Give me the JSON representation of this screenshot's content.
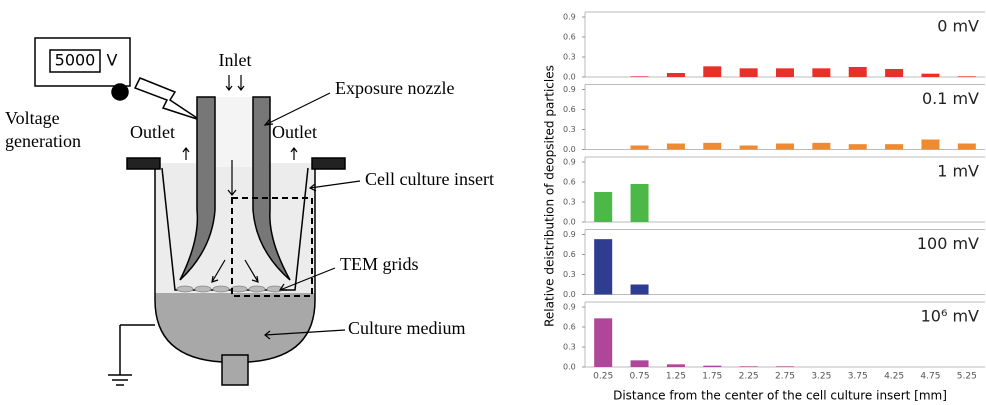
{
  "diagram": {
    "display_value": "5000",
    "display_unit": "V",
    "voltage_label": [
      "Voltage",
      "generation"
    ],
    "inlet": "Inlet",
    "exposure_nozzle": "Exposure nozzle",
    "outlet_left": "Outlet",
    "outlet_right": "Outlet",
    "cell_culture_insert": "Cell culture insert",
    "tem_grids": "TEM grids",
    "culture_medium": "Culture medium"
  },
  "axes": {
    "ylabel": "Relative deistribution of deopsited particles",
    "xlabel": "Distance from the center of the cell culture insert [mm]"
  },
  "chart_data": [
    {
      "type": "bar",
      "title": "0 mV",
      "color": "#e8302a",
      "values": [
        0,
        0.01,
        0.06,
        0.16,
        0.13,
        0.13,
        0.13,
        0.15,
        0.12,
        0.05,
        0.01
      ],
      "ylim": [
        0,
        0.9
      ],
      "yticks": [
        {
          "value": 0,
          "label": "0.0"
        },
        0.3,
        0.6,
        0.9
      ]
    },
    {
      "type": "bar",
      "title": "0.1 mV",
      "color": "#f08a30",
      "values": [
        0,
        0.06,
        0.09,
        0.1,
        0.06,
        0.09,
        0.1,
        0.08,
        0.08,
        0.15,
        0.09
      ],
      "ylim": [
        0,
        0.9
      ],
      "yticks": [
        {
          "value": 0,
          "label": "0.0"
        },
        0.3,
        0.6,
        0.9
      ]
    },
    {
      "type": "bar",
      "title": "1 mV",
      "color": "#4cb848",
      "values": [
        0.45,
        0.57,
        0,
        0,
        0,
        0,
        0,
        0,
        0,
        0,
        0
      ],
      "ylim": [
        0,
        0.9
      ],
      "yticks": [
        {
          "value": 0,
          "label": "0.0"
        },
        0.3,
        0.6,
        0.9
      ]
    },
    {
      "type": "bar",
      "title": "100 mV",
      "color": "#2e3d8f",
      "values": [
        0.83,
        0.15,
        0,
        0,
        0,
        0,
        0,
        0,
        0,
        0,
        0
      ],
      "ylim": [
        0,
        0.9
      ],
      "yticks": [
        {
          "value": 0,
          "label": "0.0"
        },
        0.3,
        0.6,
        0.9
      ]
    },
    {
      "type": "bar",
      "title": "10⁶ mV",
      "color": "#b0469a",
      "categories": [
        "0.25",
        "0.75",
        "1.25",
        "1.75",
        "2.25",
        "2.75",
        "3.25",
        "3.75",
        "4.25",
        "4.75",
        "5.25"
      ],
      "values": [
        0.73,
        0.1,
        0.04,
        0.02,
        0.01,
        0.01,
        0,
        0,
        0,
        0,
        0
      ],
      "ylim": [
        0,
        0.9
      ],
      "yticks": [
        {
          "value": 0,
          "label": "0.0"
        },
        0.3,
        0.6,
        0.9
      ]
    }
  ]
}
